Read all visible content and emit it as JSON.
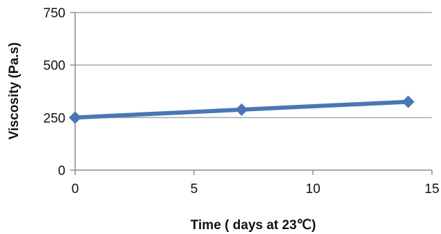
{
  "chart_data": {
    "type": "line",
    "title": "",
    "xlabel": "Time ( days at 23℃)",
    "ylabel": "Viscosity (Pa.s)",
    "xlim": [
      0,
      15
    ],
    "ylim": [
      0,
      750
    ],
    "xticks": [
      "0",
      "5",
      "10",
      "15"
    ],
    "yticks": [
      "0",
      "250",
      "500",
      "750"
    ],
    "grid": "horizontal",
    "legend": "none",
    "series": [
      {
        "color": "#4a76b5",
        "marker": "diamond",
        "x": [
          0,
          7,
          14
        ],
        "y": [
          250,
          288,
          325
        ]
      }
    ]
  }
}
